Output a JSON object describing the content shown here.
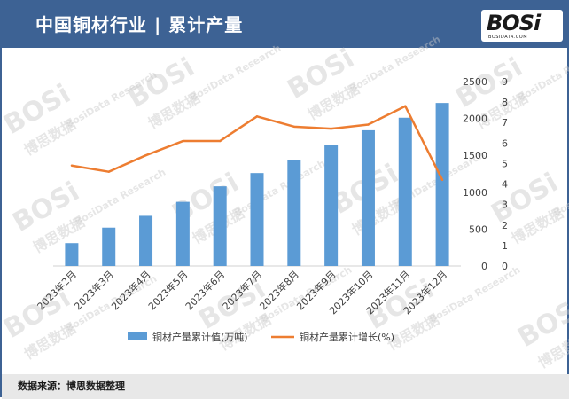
{
  "header": {
    "title": "中国铜材行业 | 累计产量"
  },
  "logo": {
    "text": "BOSi",
    "subtext": "BOSIDATA.COM"
  },
  "footer": {
    "source": "数据来源：博思数据整理"
  },
  "watermark": {
    "main": "BOSi",
    "sub": "博思数据",
    "en": "BosiData Research"
  },
  "colors": {
    "bar": "#5b9bd5",
    "line": "#ed7d31",
    "header": "#3d6294"
  },
  "chart_data": {
    "type": "bar",
    "categories": [
      "2023年2月",
      "2023年3月",
      "2023年4月",
      "2023年5月",
      "2023年6月",
      "2023年7月",
      "2023年8月",
      "2023年9月",
      "2023年10月",
      "2023年11月",
      "2023年12月"
    ],
    "series": [
      {
        "name": "铜材产量累计值(万吨)",
        "type": "bar",
        "axis": "left",
        "values": [
          310,
          520,
          680,
          870,
          1080,
          1260,
          1440,
          1640,
          1840,
          2010,
          2210
        ]
      },
      {
        "name": "铜材产量累计增长(%)",
        "type": "line",
        "axis": "right",
        "values": [
          4.9,
          4.6,
          5.4,
          6.1,
          6.1,
          7.3,
          6.8,
          6.7,
          6.9,
          7.8,
          4.2
        ]
      }
    ],
    "y_left": {
      "lim": [
        0,
        2500
      ],
      "ticks": [
        "0",
        "500",
        "1000",
        "1500",
        "2000",
        "2500"
      ]
    },
    "y_right": {
      "lim": [
        0,
        9
      ],
      "ticks": [
        "0",
        "1",
        "2",
        "3",
        "4",
        "5",
        "6",
        "7",
        "8",
        "9"
      ]
    },
    "legend_position": "bottom",
    "grid": false
  }
}
